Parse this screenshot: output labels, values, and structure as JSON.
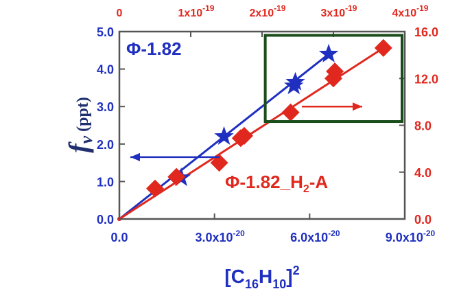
{
  "chart_data": {
    "type": "scatter",
    "title": "",
    "xlabel_bottom": {
      "base": "[C",
      "sub1": "16",
      "mid": "H",
      "sub2": "10",
      "end": "]",
      "sup": "2"
    },
    "ylabel_left": {
      "main": "f",
      "sub": "v",
      "unit": " (ppt)"
    },
    "x_bottom": {
      "lim": [
        0,
        9e-20
      ],
      "ticks": [
        0,
        3e-20,
        6e-20,
        9e-20
      ],
      "tick_labels": [
        {
          "base": "0.0",
          "exp": ""
        },
        {
          "base": "3.0x10",
          "exp": "-20"
        },
        {
          "base": "6.0x10",
          "exp": "-20"
        },
        {
          "base": "9.0x10",
          "exp": "-20"
        }
      ]
    },
    "x_top": {
      "lim": [
        0,
        4e-19
      ],
      "ticks": [
        0,
        1e-19,
        2e-19,
        3e-19,
        4e-19
      ],
      "tick_labels": [
        {
          "base": "0",
          "exp": ""
        },
        {
          "base": "1x10",
          "exp": "-19"
        },
        {
          "base": "2x10",
          "exp": "-19"
        },
        {
          "base": "3x10",
          "exp": "-19"
        },
        {
          "base": "4x10",
          "exp": "-19"
        }
      ]
    },
    "y_left": {
      "lim": [
        0,
        5
      ],
      "ticks": [
        0,
        1,
        2,
        3,
        4,
        5
      ],
      "tick_labels": [
        "0.0",
        "1.0",
        "2.0",
        "3.0",
        "4.0",
        "5.0"
      ]
    },
    "y_right": {
      "lim": [
        0,
        16
      ],
      "ticks": [
        0,
        4,
        8,
        12,
        16
      ],
      "tick_labels": [
        "0.0",
        "4.0",
        "8.0",
        "12.0",
        "16.0"
      ]
    },
    "series": [
      {
        "label_main": "Φ-1.82",
        "label_sub": "",
        "label_end": "",
        "color": "#1f2fbf",
        "marker": "star",
        "x_axis": "bottom",
        "y_axis": "left",
        "x": [
          0,
          1.95e-20,
          3.3e-20,
          5.5e-20,
          5.55e-20,
          6.6e-20
        ],
        "y": [
          0.0,
          1.1,
          2.2,
          3.55,
          3.65,
          4.4
        ],
        "fit_line": {
          "x": [
            0,
            6.6e-20
          ],
          "y": [
            0.0,
            4.4
          ]
        },
        "arrow_direction": "left"
      },
      {
        "label_main": "Φ-1.82_H",
        "label_sub": "2",
        "label_end": "-A",
        "color": "#e0281e",
        "marker": "diamond",
        "x_axis": "top",
        "y_axis": "right",
        "x": [
          0,
          5e-20,
          8e-20,
          1.4e-19,
          1.7e-19,
          1.75e-19,
          2.4e-19,
          3e-19,
          3.02e-19,
          3.7e-19
        ],
        "y": [
          0.0,
          2.6,
          3.6,
          4.8,
          6.9,
          7.1,
          9.1,
          12.0,
          12.6,
          14.6
        ],
        "fit_line": {
          "x": [
            0,
            3.7e-19
          ],
          "y": [
            0.0,
            14.6
          ]
        },
        "arrow_direction": "right"
      }
    ],
    "highlight_box": {
      "color": "#1a4d1a",
      "x_data": [
        4.6e-20,
        9e-20
      ],
      "y_data": [
        2.6,
        4.9
      ]
    },
    "grid": false,
    "legend": "inline"
  }
}
